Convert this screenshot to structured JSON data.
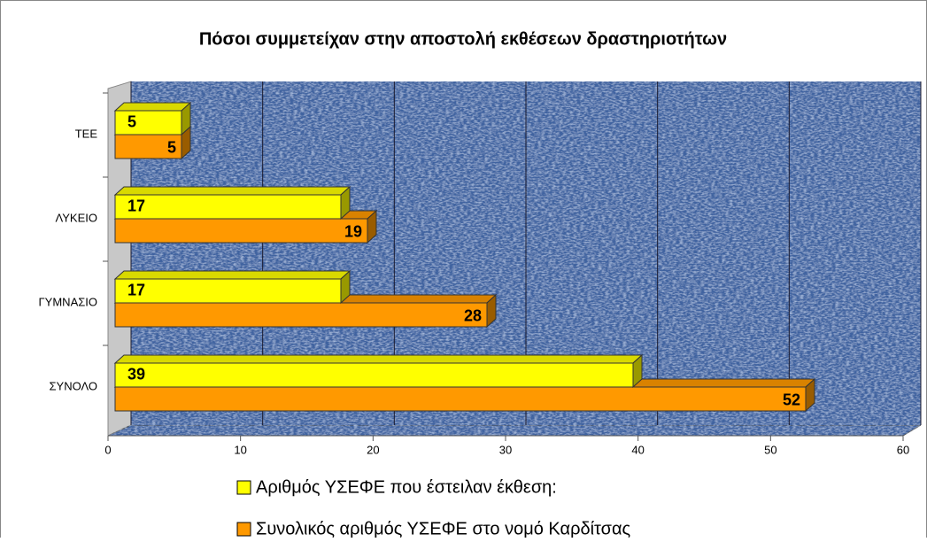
{
  "chart_data": {
    "type": "bar",
    "orientation": "horizontal",
    "title": "Πόσοι συμμετείχαν στην αποστολή εκθέσεων δραστηριοτήτων",
    "categories": [
      "ΤΕΕ",
      "ΛΥΚΕΙΟ",
      "ΓΥΜΝΑΣΙΟ",
      "ΣΥΝΟΛΟ"
    ],
    "series": [
      {
        "name": "Αριθμός ΥΣΕΦΕ που έστειλαν έκθεση:",
        "color": "#ffff00",
        "values": [
          5,
          17,
          17,
          39
        ]
      },
      {
        "name": "Συνολικός αριθμός ΥΣΕΦΕ στο νομό Καρδίτσας",
        "color": "#ff9900",
        "values": [
          5,
          19,
          28,
          52
        ]
      }
    ],
    "xlim": [
      0,
      60
    ],
    "xticks": [
      0,
      10,
      20,
      30,
      40,
      50,
      60
    ],
    "grid": true,
    "legend": "bottom"
  }
}
